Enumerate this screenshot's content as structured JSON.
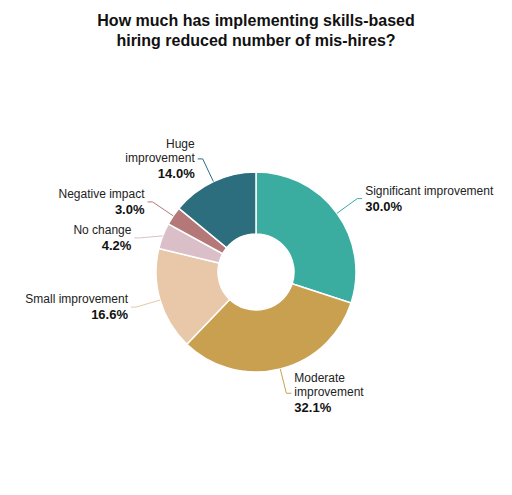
{
  "chart_data": {
    "type": "donut",
    "title": "How much has implementing skills-based\nhiring reduced number of mis-hires?",
    "categories": [
      "Significant improvement",
      "Moderate\nimprovement",
      "Small improvement",
      "No change",
      "Negative impact",
      "Huge\nimprovement"
    ],
    "values": [
      30.0,
      32.1,
      16.6,
      4.2,
      3.0,
      14.0
    ],
    "value_labels": [
      "30.0%",
      "32.1%",
      "16.6%",
      "4.2%",
      "3.0%",
      "14.0%"
    ],
    "colors": [
      "#3aada0",
      "#c8a050",
      "#e8c8a8",
      "#dbbfc8",
      "#b57878",
      "#2d6e7e"
    ],
    "data_labels": true
  }
}
